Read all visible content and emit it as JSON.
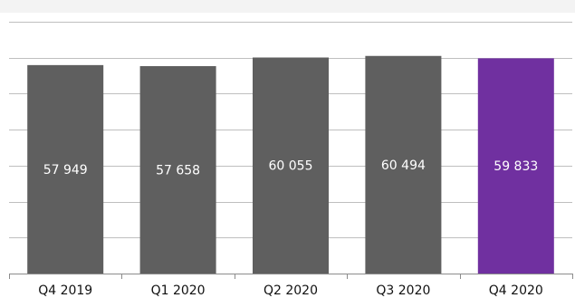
{
  "chart_data": {
    "type": "bar",
    "categories": [
      "Q4 2019",
      "Q1 2020",
      "Q2 2020",
      "Q3 2020",
      "Q4 2020"
    ],
    "values": [
      57949,
      57658,
      60055,
      60494,
      59833
    ],
    "value_labels": [
      "57 949",
      "57 658",
      "60 055",
      "60 494",
      "59 833"
    ],
    "ylim": [
      0,
      70000
    ],
    "grid": true,
    "colors": {
      "bar": "#5f5f5f",
      "highlight": "#7030a0",
      "grid": "#bfbfbf"
    },
    "highlight_index": 4
  }
}
